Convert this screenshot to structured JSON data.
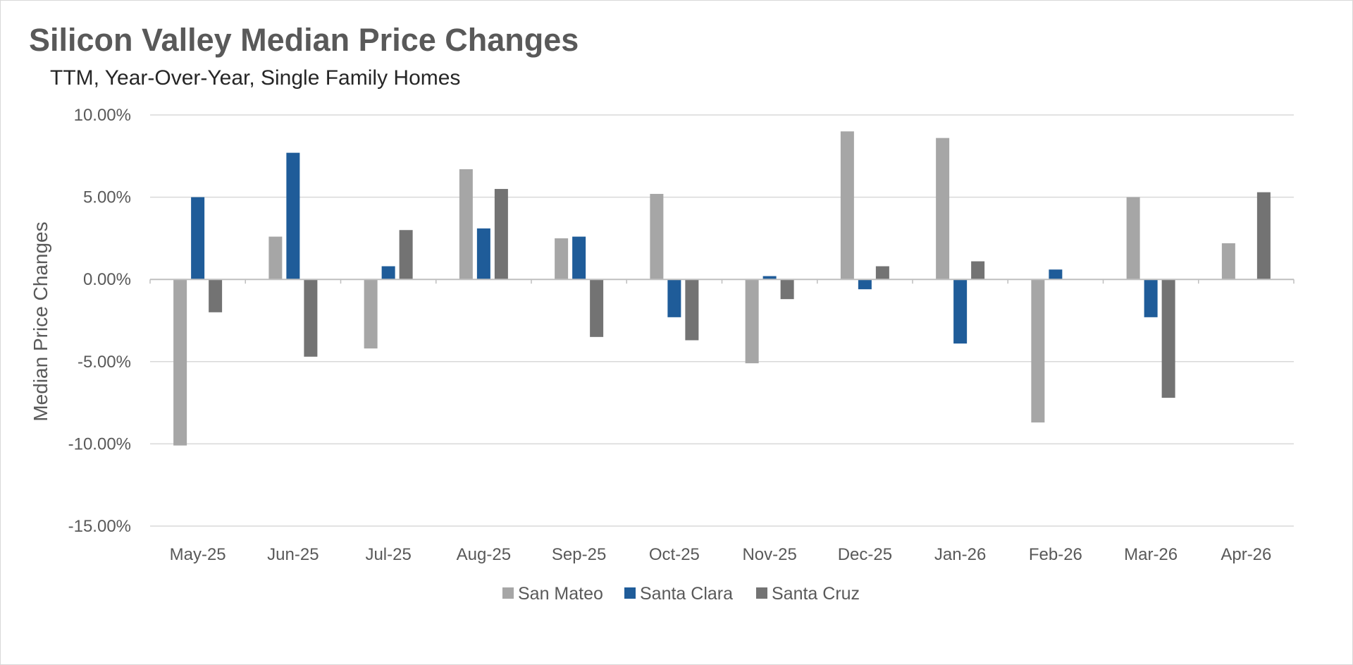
{
  "chart_data": {
    "type": "bar",
    "title": "Silicon Valley Median Price Changes",
    "subtitle": "TTM, Year-Over-Year, Single Family Homes",
    "xlabel": "",
    "ylabel": "Median Price Changes",
    "ylim": [
      -15,
      10
    ],
    "yticks": [
      "10.00%",
      "5.00%",
      "0.00%",
      "-5.00%",
      "-10.00%",
      "-15.00%"
    ],
    "ytick_values": [
      10,
      5,
      0,
      -5,
      -10,
      -15
    ],
    "categories": [
      "May-25",
      "Jun-25",
      "Jul-25",
      "Aug-25",
      "Sep-25",
      "Oct-25",
      "Nov-25",
      "Dec-25",
      "Jan-26",
      "Feb-26",
      "Mar-26",
      "Apr-26"
    ],
    "series": [
      {
        "name": "San Mateo",
        "color": "#a6a6a6",
        "values": [
          -10.1,
          2.6,
          -4.2,
          6.7,
          2.5,
          5.2,
          -5.1,
          9.0,
          8.6,
          -8.7,
          5.0,
          2.2
        ]
      },
      {
        "name": "Santa Clara",
        "color": "#1f5c99",
        "values": [
          5.0,
          7.7,
          0.8,
          3.1,
          2.6,
          -2.3,
          0.2,
          -0.6,
          -3.9,
          0.6,
          -2.3,
          0.0
        ]
      },
      {
        "name": "Santa Cruz",
        "color": "#737373",
        "values": [
          -2.0,
          -4.7,
          3.0,
          5.5,
          -3.5,
          -3.7,
          -1.2,
          0.8,
          1.1,
          0.0,
          -7.2,
          5.3
        ]
      }
    ],
    "grid": true,
    "legend_position": "bottom"
  }
}
